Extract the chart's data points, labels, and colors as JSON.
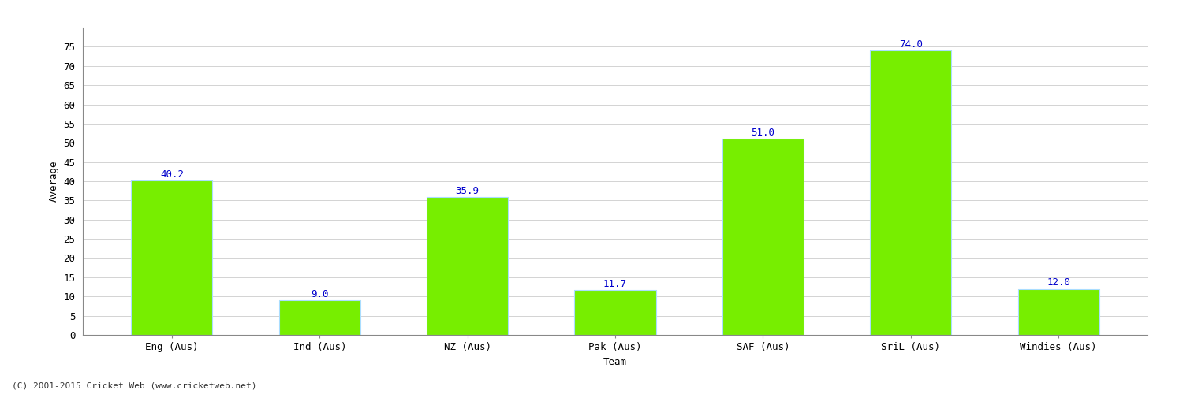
{
  "title": "",
  "categories": [
    "Eng (Aus)",
    "Ind (Aus)",
    "NZ (Aus)",
    "Pak (Aus)",
    "SAF (Aus)",
    "SriL (Aus)",
    "Windies (Aus)"
  ],
  "values": [
    40.2,
    9.0,
    35.9,
    11.7,
    51.0,
    74.0,
    12.0
  ],
  "bar_color": "#77ee00",
  "bar_edge_color": "#aaddff",
  "label_color": "#0000cc",
  "xlabel": "Team",
  "ylabel": "Average",
  "ylim": [
    0,
    80
  ],
  "yticks": [
    0,
    5,
    10,
    15,
    20,
    25,
    30,
    35,
    40,
    45,
    50,
    55,
    60,
    65,
    70,
    75
  ],
  "grid_color": "#cccccc",
  "background_color": "#ffffff",
  "fig_width": 15.0,
  "fig_height": 5.0,
  "footer_text": "(C) 2001-2015 Cricket Web (www.cricketweb.net)",
  "label_fontsize": 9,
  "axis_label_fontsize": 9,
  "tick_label_fontsize": 9,
  "bar_width": 0.55
}
